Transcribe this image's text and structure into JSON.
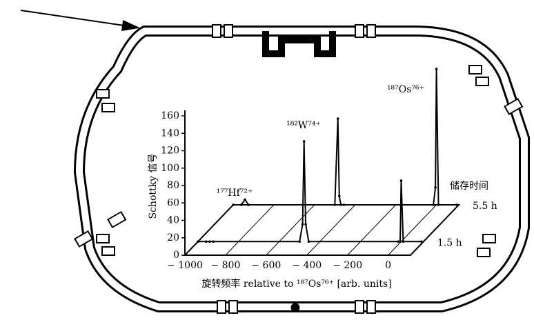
{
  "chart_data": {
    "type": "waterfall",
    "y_label": "Schottky 信号",
    "x_label": "旋转频率 relative to ¹⁸⁷Os⁷⁶⁺ [arb. units]",
    "depth_label": "储存时间",
    "x": [
      -1000,
      -960,
      -942,
      -925,
      -500,
      -485,
      -478,
      -470,
      -455,
      -15,
      -5,
      0,
      10,
      100
    ],
    "series": [
      {
        "name": "1.5 h",
        "color": "#000000",
        "values": [
          0,
          0,
          0,
          0,
          0,
          20,
          115,
          20,
          0,
          0,
          0,
          70,
          0,
          0
        ]
      },
      {
        "name": "5.5 h",
        "color": "#000000",
        "values": [
          0,
          0,
          6,
          0,
          0,
          99,
          10,
          0,
          0,
          0,
          20,
          156,
          0,
          0
        ]
      }
    ],
    "annotations": [
      "¹⁷⁷Hf⁷²⁺",
      "¹⁸²W⁷⁴⁺",
      "¹⁸⁷Os⁷⁶⁺"
    ],
    "xlim": [
      -1000,
      110
    ],
    "ylim": [
      0,
      160
    ],
    "xticks": [
      {
        "value": -1000,
        "label": "− 1000"
      },
      {
        "value": -800,
        "label": "− 800"
      },
      {
        "value": -600,
        "label": "− 600"
      },
      {
        "value": -400,
        "label": "− 400"
      },
      {
        "value": -200,
        "label": "− 200"
      },
      0
    ],
    "yticks": [
      0,
      20,
      40,
      60,
      80,
      100,
      120,
      140,
      160
    ]
  }
}
